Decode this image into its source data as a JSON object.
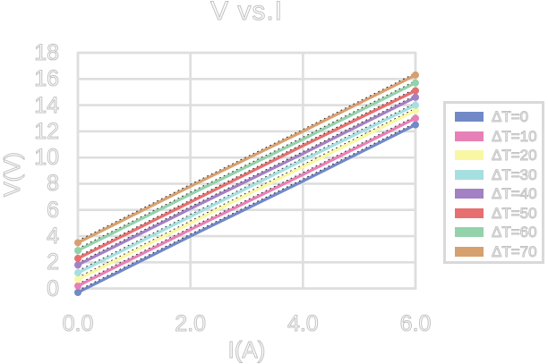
{
  "chart": {
    "title": "V vs.I",
    "xlabel": "I(A)",
    "ylabel": "V(V)"
  },
  "chart_data": {
    "type": "line",
    "title": "V vs.I",
    "xlabel": "I(A)",
    "ylabel": "V(V)",
    "x": [
      0,
      2,
      4,
      6
    ],
    "x_ticks": [
      "0.0",
      "2.0",
      "4.0",
      "6.0"
    ],
    "x_tick_values": [
      0,
      2,
      4,
      6
    ],
    "y_ticks": [
      0,
      2,
      4,
      6,
      8,
      10,
      12,
      14,
      16,
      18
    ],
    "xlim": [
      0,
      6
    ],
    "ylim": [
      0,
      18
    ],
    "grid": true,
    "legend_position": "right-outside",
    "trendline_style": "black dotted over each series",
    "series": [
      {
        "name": "ΔT=0",
        "color": "#7189c7",
        "values": [
          -0.3,
          4.0,
          8.2,
          12.5
        ]
      },
      {
        "name": "ΔT=10",
        "color": "#e780b6",
        "values": [
          0.2,
          4.5,
          8.7,
          13.0
        ]
      },
      {
        "name": "ΔT=20",
        "color": "#f9f7a3",
        "values": [
          0.7,
          5.0,
          9.3,
          13.6
        ]
      },
      {
        "name": "ΔT=30",
        "color": "#a6dfe0",
        "values": [
          1.2,
          5.5,
          9.8,
          14.0
        ]
      },
      {
        "name": "ΔT=40",
        "color": "#a381c4",
        "values": [
          1.8,
          6.1,
          10.3,
          14.6
        ]
      },
      {
        "name": "ΔT=50",
        "color": "#e76f6f",
        "values": [
          2.3,
          6.6,
          10.9,
          15.1
        ]
      },
      {
        "name": "ΔT=60",
        "color": "#93d2ab",
        "values": [
          2.9,
          7.2,
          11.4,
          15.7
        ]
      },
      {
        "name": "ΔT=70",
        "color": "#d7a06f",
        "values": [
          3.5,
          7.8,
          12.0,
          16.3
        ]
      }
    ],
    "style": {
      "grid_color": "#dedede",
      "text_outline_color": "#c2c2c2",
      "trendline_color": "#1a1a1a",
      "background": "#ffffff"
    }
  }
}
